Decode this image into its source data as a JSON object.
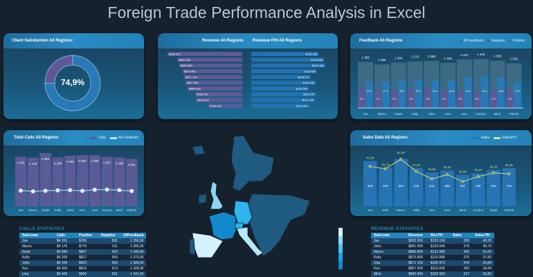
{
  "title": "Foreign Trade Performance Analysis in Excel",
  "colors": {
    "background": "#15212c",
    "accent": "#2a8cc3",
    "purple": "#5a5a96",
    "blue": "#2779b8",
    "line_yellow": "#d4e08a",
    "feedback_grey": "#3d6a85"
  },
  "satisfaction": {
    "title": "Client Satisfaction All Regions:",
    "value_label": "74,9%",
    "value": 74.9
  },
  "revenue_panel": {
    "title_left": "Revenue All Regions",
    "title_right": "Revenue P/H All Regions",
    "revenue": [
      920200,
      891000,
      885800,
      875800,
      871100,
      867500,
      860600,
      838000,
      836000,
      799400
    ],
    "revenue_labels": [
      "$920 200",
      "$891 000",
      "$885 800",
      "$875 800",
      "$871 100",
      "$867 500",
      "$860 600",
      "$838 000",
      "$836 000",
      "$799 400"
    ],
    "rev_ph": [
      120158,
      129645,
      131686,
      116998,
      105972,
      115028,
      102560,
      115475,
      113706,
      103340
    ],
    "rev_ph_labels": [
      "$120 158",
      "$129 645",
      "$131 686",
      "$116 998",
      "$105 972",
      "$115 028",
      "$102 560",
      "$115 475",
      "$113 706",
      "$103 340"
    ]
  },
  "chart_data": [
    {
      "type": "bar",
      "title": "Feedback All Regions",
      "legend": [
        "All Feedback",
        "Negative",
        "Positive"
      ],
      "legend_placement": "top-right",
      "categories": [
        "Joe",
        "Marco",
        "Noah",
        "Kelly",
        "John",
        "Ken",
        "Una",
        "Gordon",
        "Mich",
        "Patrick"
      ],
      "series": [
        {
          "name": "All Feedback",
          "values": [
            1356,
            1286,
            1340,
            1373,
            1389,
            1328,
            1431,
            1445,
            1395,
            1319
          ],
          "labels": [
            "1 356",
            "1 286",
            "1 340",
            "1 373",
            "1 389",
            "1 328",
            "1 431",
            "1 445",
            "1 395",
            "1 319"
          ]
        },
        {
          "name": "Negative",
          "values": [
            591,
            511,
            533,
            556,
            569,
            513,
            531,
            506,
            510,
            556
          ]
        },
        {
          "name": "Positive",
          "values": [
            765,
            775,
            807,
            817,
            820,
            815,
            900,
            939,
            885,
            763
          ],
          "labels": [
            "$765",
            "$775",
            "$807",
            "$817",
            "$820",
            "$815",
            "$900",
            "$939",
            "$885",
            "$763"
          ]
        }
      ]
    },
    {
      "type": "bar",
      "title": "Total Calls All Regions",
      "legend": [
        "Calls",
        "All Feedback"
      ],
      "legend_placement": "top-right",
      "categories": [
        "Joe",
        "Marco",
        "Noah",
        "Kelly",
        "John",
        "Ken",
        "Una",
        "Gordon",
        "Mich",
        "Patrick"
      ],
      "series": [
        {
          "name": "Calls",
          "values": [
            4261,
            4176,
            4584,
            4209,
            4346,
            4403,
            4405,
            4257,
            4199,
            4081
          ],
          "labels": [
            "4 261",
            "4 176",
            "4 584",
            "4 209",
            "4 346",
            "4 403",
            "4 405",
            "4 257",
            "4 199",
            "4 081"
          ]
        },
        {
          "name": "All Feedback",
          "values": [
            1356,
            1286,
            1340,
            1373,
            1389,
            1328,
            1431,
            1445,
            1395,
            1319
          ]
        }
      ]
    },
    {
      "type": "bar",
      "title": "Sales Data All Regions",
      "legend": [
        "Sales",
        "Sales/PH"
      ],
      "legend_placement": "top-right",
      "categories": [
        "Joe",
        "John",
        "Marco",
        "Kelly",
        "Una",
        "Ken",
        "Mich",
        "Gordon",
        "Noah",
        "Patrick"
      ],
      "series": [
        {
          "name": "Sales",
          "values": [
            328,
            278,
            342,
            276,
            244,
            260,
            227,
            239,
            263,
            276
          ]
        },
        {
          "name": "Sales/PH",
          "values": [
            43.28,
            40.79,
            51.0,
            37.83,
            29.68,
            34.44,
            26.8,
            32.21,
            36.33,
            35.25
          ],
          "labels": [
            "43,28",
            "40,79",
            "51,00",
            "37,83",
            "29,68",
            "34,44",
            "26,80",
            "32,21",
            "36,33",
            "35,25"
          ]
        }
      ]
    }
  ],
  "calls_table": {
    "caption": "CALLS STATISTICS",
    "headers": [
      "Salesman",
      "Calls",
      "Positive",
      "Negative",
      "AllFeedback"
    ],
    "rows": [
      [
        "Joe",
        "$4 261",
        "$765",
        "591",
        "1 356,00"
      ],
      [
        "Marco",
        "$4 176",
        "$775",
        "511",
        "1 286,00"
      ],
      [
        "Noah",
        "$4 584",
        "$807",
        "533",
        "1 340,00"
      ],
      [
        "Kelly",
        "$4 209",
        "$817",
        "556",
        "1 373,00"
      ],
      [
        "John",
        "$4 346",
        "$820",
        "569",
        "1 389,00"
      ],
      [
        "Ken",
        "$4 403",
        "$815",
        "513",
        "1 328,00"
      ],
      [
        "Una",
        "$4 405",
        "$900",
        "531",
        "1 431,00"
      ]
    ]
  },
  "revenue_table": {
    "caption": "REVENUE STATISTICS",
    "headers": [
      "Salesman",
      "Revenue",
      "Rev PH",
      "Sales",
      "Sales PH"
    ],
    "rows": [
      [
        "Joe",
        "$920 200",
        "$120 158",
        "328",
        "43,28"
      ],
      [
        "John",
        "$891 000",
        "$129 645",
        "278",
        "40,79"
      ],
      [
        "Marco",
        "$885 800",
        "$131 686",
        "342",
        "51,00"
      ],
      [
        "Kelly",
        "$875 800",
        "$116 998",
        "276",
        "37,83"
      ],
      [
        "Una",
        "$871 100",
        "$105 972",
        "244",
        "29,68"
      ],
      [
        "Ken",
        "$867 500",
        "$115 028",
        "260",
        "34,44"
      ],
      [
        "Mich",
        "$860 600",
        "$102 560",
        "227",
        "26,80"
      ]
    ]
  }
}
